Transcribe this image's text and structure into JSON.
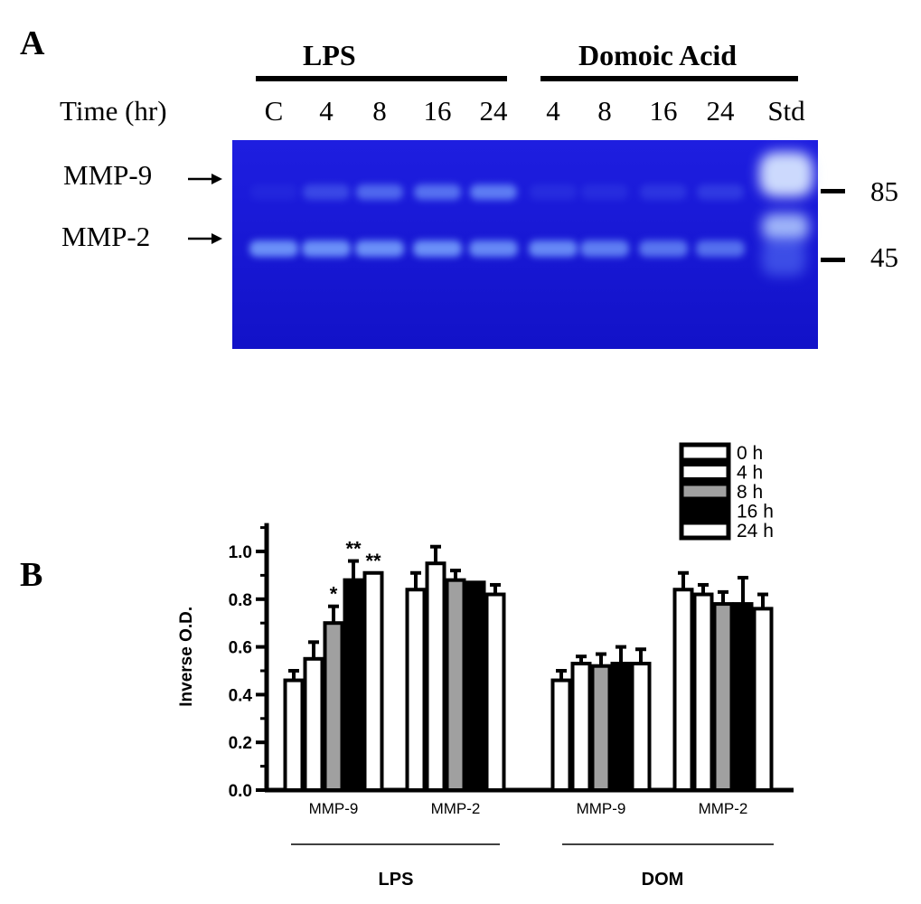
{
  "panel_a": {
    "label": "A",
    "time_label": "Time (hr)",
    "groups": [
      {
        "label": "LPS"
      },
      {
        "label": "Domoic Acid"
      }
    ],
    "lanes": [
      "C",
      "4",
      "8",
      "16",
      "24",
      "4",
      "8",
      "16",
      "24",
      "Std"
    ],
    "band_labels": [
      "MMP-9",
      "MMP-2"
    ],
    "markers": [
      "85",
      "45"
    ],
    "colors": {
      "gel": "#1a1ad6",
      "gel_dark": "#0d0db0",
      "band": "#7aa6ff"
    }
  },
  "panel_b": {
    "label": "B",
    "group_labels": [
      "LPS",
      "DOM"
    ]
  },
  "chart_data": {
    "type": "bar",
    "ylabel": "Inverse O.D.",
    "ylim": [
      0,
      1.1
    ],
    "yticks": [
      "0.0",
      "0.2",
      "0.4",
      "0.6",
      "0.8",
      "1.0"
    ],
    "categories": [
      "MMP-9",
      "MMP-2",
      "MMP-9",
      "MMP-2"
    ],
    "legend": {
      "position": "top-right"
    },
    "series": [
      {
        "name": "0 h",
        "fill": "#ffffff",
        "values": [
          0.46,
          0.84,
          0.46,
          0.84
        ],
        "errors": [
          0.04,
          0.07,
          0.04,
          0.07
        ],
        "annotations": [
          "",
          "",
          "",
          ""
        ]
      },
      {
        "name": "4 h",
        "fill": "#ffffff",
        "values": [
          0.55,
          0.95,
          0.53,
          0.82
        ],
        "errors": [
          0.07,
          0.07,
          0.03,
          0.04
        ],
        "annotations": [
          "",
          "",
          "",
          ""
        ]
      },
      {
        "name": "8 h",
        "fill": "#a0a0a0",
        "values": [
          0.7,
          0.88,
          0.52,
          0.78
        ],
        "errors": [
          0.07,
          0.04,
          0.05,
          0.05
        ],
        "annotations": [
          "*",
          "",
          "",
          ""
        ]
      },
      {
        "name": "16 h",
        "fill": "#000000",
        "values": [
          0.88,
          0.87,
          0.53,
          0.78
        ],
        "errors": [
          0.08,
          0.0,
          0.07,
          0.11
        ],
        "annotations": [
          "**",
          "",
          "",
          ""
        ]
      },
      {
        "name": "24 h",
        "fill": "#ffffff",
        "values": [
          0.91,
          0.82,
          0.53,
          0.76
        ],
        "errors": [
          0.0,
          0.04,
          0.06,
          0.06
        ],
        "annotations": [
          "**",
          "",
          "",
          ""
        ]
      }
    ]
  }
}
